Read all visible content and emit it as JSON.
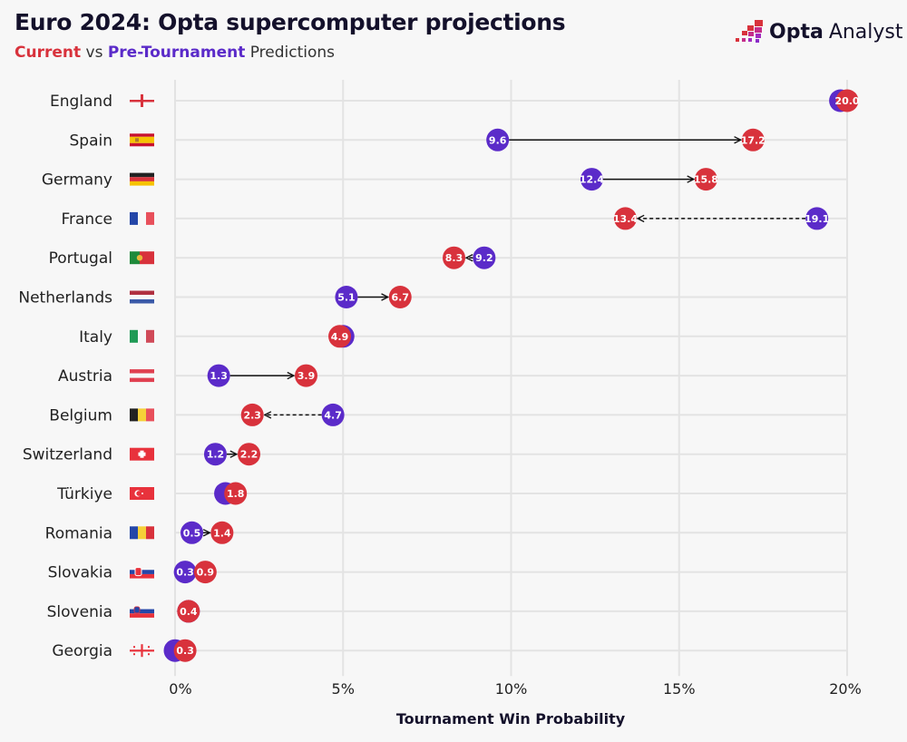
{
  "title": "Euro 2024: Opta supercomputer projections",
  "subtitle": {
    "current": "Current",
    "vs": " vs ",
    "pre": "Pre-Tournament",
    "rest": " Predictions"
  },
  "logo": {
    "brand": "Opta",
    "product": "Analyst"
  },
  "colors": {
    "current": "#d8323c",
    "pre": "#5b2bc9",
    "grid": "#e3e3e3",
    "background": "#f7f7f7"
  },
  "chart_data": {
    "type": "dumbbell",
    "title": "Euro 2024: Opta supercomputer projections",
    "xlabel": "Tournament Win Probability",
    "xlim": [
      0,
      20
    ],
    "xticks": [
      "0%",
      "5%",
      "10%",
      "15%",
      "20%"
    ],
    "xtick_values": [
      0,
      5,
      10,
      15,
      20
    ],
    "grid": true,
    "series": [
      {
        "name": "Current"
      },
      {
        "name": "Pre-Tournament"
      }
    ],
    "rows": [
      {
        "team": "England",
        "flag": "england",
        "current": 20.0,
        "pre": 19.8,
        "current_label": "20.0",
        "pre_label": ""
      },
      {
        "team": "Spain",
        "flag": "spain",
        "current": 17.2,
        "pre": 9.6,
        "current_label": "17.2",
        "pre_label": "9.6"
      },
      {
        "team": "Germany",
        "flag": "germany",
        "current": 15.8,
        "pre": 12.4,
        "current_label": "15.8",
        "pre_label": "12.4"
      },
      {
        "team": "France",
        "flag": "france",
        "current": 13.4,
        "pre": 19.1,
        "current_label": "13.4",
        "pre_label": "19.1"
      },
      {
        "team": "Portugal",
        "flag": "portugal",
        "current": 8.3,
        "pre": 9.2,
        "current_label": "8.3",
        "pre_label": "9.2"
      },
      {
        "team": "Netherlands",
        "flag": "netherlands",
        "current": 6.7,
        "pre": 5.1,
        "current_label": "6.7",
        "pre_label": "5.1"
      },
      {
        "team": "Italy",
        "flag": "italy",
        "current": 4.9,
        "pre": 5.0,
        "current_label": "4.9",
        "pre_label": ""
      },
      {
        "team": "Austria",
        "flag": "austria",
        "current": 3.9,
        "pre": 1.3,
        "current_label": "3.9",
        "pre_label": "1.3"
      },
      {
        "team": "Belgium",
        "flag": "belgium",
        "current": 2.3,
        "pre": 4.7,
        "current_label": "2.3",
        "pre_label": "4.7"
      },
      {
        "team": "Switzerland",
        "flag": "switzerland",
        "current": 2.2,
        "pre": 1.2,
        "current_label": "2.2",
        "pre_label": "1.2"
      },
      {
        "team": "Türkiye",
        "flag": "turkiye",
        "current": 1.8,
        "pre": 1.5,
        "current_label": "1.8",
        "pre_label": ""
      },
      {
        "team": "Romania",
        "flag": "romania",
        "current": 1.4,
        "pre": 0.5,
        "current_label": "1.4",
        "pre_label": "0.5"
      },
      {
        "team": "Slovakia",
        "flag": "slovakia",
        "current": 0.9,
        "pre": 0.3,
        "current_label": "0.9",
        "pre_label": "0.3"
      },
      {
        "team": "Slovenia",
        "flag": "slovenia",
        "current": 0.4,
        "pre": 0.4,
        "current_label": "0.4",
        "pre_label": ""
      },
      {
        "team": "Georgia",
        "flag": "georgia",
        "current": 0.3,
        "pre": 0.0,
        "current_label": "0.3",
        "pre_label": ""
      }
    ]
  }
}
